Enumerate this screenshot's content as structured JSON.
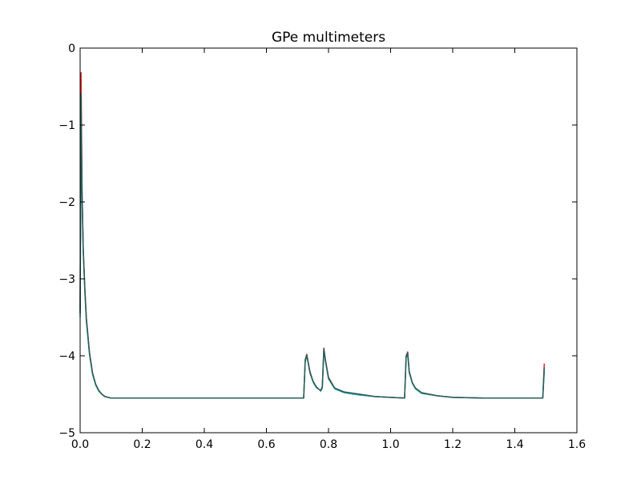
{
  "chart_data": {
    "type": "line",
    "title": "GPe multimeters",
    "xlabel": "",
    "ylabel": "",
    "xlim": [
      0.0,
      1.6
    ],
    "ylim": [
      -5,
      0
    ],
    "x_ticks": [
      0.0,
      0.2,
      0.4,
      0.6,
      0.8,
      1.0,
      1.2,
      1.4,
      1.6
    ],
    "x_tick_labels": [
      "0.0",
      "0.2",
      "0.4",
      "0.6",
      "0.8",
      "1.0",
      "1.2",
      "1.4",
      "1.6"
    ],
    "y_ticks": [
      0,
      -1,
      -2,
      -3,
      -4,
      -5
    ],
    "y_tick_labels": [
      "0",
      "−1",
      "−2",
      "−3",
      "−4",
      "−5"
    ],
    "grid": false,
    "legend": "none",
    "series": [
      {
        "color": "#d62728",
        "x": [
          0.0,
          0.003,
          0.006,
          0.01,
          0.015,
          0.02,
          0.03,
          0.04,
          0.05,
          0.06,
          0.07,
          0.08,
          0.09,
          0.1,
          0.2,
          0.4,
          0.6,
          0.72,
          0.725,
          0.73,
          0.74,
          0.75,
          0.76,
          0.77,
          0.775,
          0.78,
          0.785,
          0.79,
          0.8,
          0.82,
          0.85,
          0.9,
          0.95,
          1.0,
          1.045,
          1.05,
          1.055,
          1.06,
          1.07,
          1.08,
          1.1,
          1.15,
          1.2,
          1.3,
          1.4,
          1.49,
          1.495
        ],
        "values": [
          -3.4,
          -0.32,
          -1.8,
          -2.6,
          -3.1,
          -3.5,
          -3.95,
          -4.22,
          -4.37,
          -4.45,
          -4.5,
          -4.53,
          -4.54,
          -4.55,
          -4.55,
          -4.55,
          -4.55,
          -4.55,
          -4.05,
          -3.98,
          -4.2,
          -4.33,
          -4.4,
          -4.44,
          -4.45,
          -4.4,
          -3.9,
          -4.05,
          -4.28,
          -4.42,
          -4.47,
          -4.5,
          -4.53,
          -4.54,
          -4.55,
          -4.0,
          -3.95,
          -4.2,
          -4.35,
          -4.42,
          -4.48,
          -4.52,
          -4.54,
          -4.55,
          -4.55,
          -4.55,
          -4.1
        ]
      },
      {
        "color": "#17a9b0",
        "x": [
          0.0,
          0.003,
          0.006,
          0.01,
          0.015,
          0.02,
          0.03,
          0.04,
          0.05,
          0.06,
          0.07,
          0.08,
          0.09,
          0.1,
          0.2,
          0.4,
          0.6,
          0.72,
          0.725,
          0.73,
          0.74,
          0.75,
          0.76,
          0.77,
          0.775,
          0.78,
          0.785,
          0.79,
          0.8,
          0.82,
          0.85,
          0.9,
          0.95,
          1.0,
          1.045,
          1.05,
          1.055,
          1.06,
          1.07,
          1.08,
          1.1,
          1.15,
          1.2,
          1.3,
          1.4,
          1.49,
          1.495
        ],
        "values": [
          -3.5,
          -0.9,
          -1.9,
          -2.65,
          -3.15,
          -3.55,
          -3.98,
          -4.24,
          -4.38,
          -4.46,
          -4.5,
          -4.53,
          -4.54,
          -4.55,
          -4.55,
          -4.55,
          -4.55,
          -4.55,
          -4.08,
          -4.0,
          -4.22,
          -4.34,
          -4.41,
          -4.44,
          -4.46,
          -4.42,
          -3.93,
          -4.07,
          -4.3,
          -4.43,
          -4.48,
          -4.51,
          -4.53,
          -4.54,
          -4.55,
          -4.03,
          -3.98,
          -4.22,
          -4.36,
          -4.43,
          -4.49,
          -4.52,
          -4.54,
          -4.55,
          -4.55,
          -4.55,
          -4.2
        ]
      },
      {
        "color": "#2a5f5a",
        "x": [
          0.0,
          0.003,
          0.006,
          0.01,
          0.015,
          0.02,
          0.03,
          0.04,
          0.05,
          0.06,
          0.07,
          0.08,
          0.09,
          0.1,
          0.2,
          0.4,
          0.6,
          0.72,
          0.725,
          0.73,
          0.74,
          0.75,
          0.76,
          0.77,
          0.775,
          0.78,
          0.785,
          0.79,
          0.8,
          0.82,
          0.85,
          0.9,
          0.95,
          1.0,
          1.045,
          1.05,
          1.055,
          1.06,
          1.07,
          1.08,
          1.1,
          1.15,
          1.2,
          1.3,
          1.4,
          1.49,
          1.495
        ],
        "values": [
          -3.45,
          -0.6,
          -1.85,
          -2.62,
          -3.12,
          -3.52,
          -3.96,
          -4.23,
          -4.37,
          -4.45,
          -4.5,
          -4.53,
          -4.54,
          -4.55,
          -4.55,
          -4.55,
          -4.55,
          -4.55,
          -4.06,
          -3.99,
          -4.21,
          -4.33,
          -4.4,
          -4.44,
          -4.45,
          -4.41,
          -3.91,
          -4.06,
          -4.29,
          -4.42,
          -4.47,
          -4.5,
          -4.53,
          -4.54,
          -4.55,
          -4.01,
          -3.96,
          -4.21,
          -4.35,
          -4.42,
          -4.48,
          -4.52,
          -4.54,
          -4.55,
          -4.55,
          -4.55,
          -4.15
        ]
      }
    ]
  }
}
